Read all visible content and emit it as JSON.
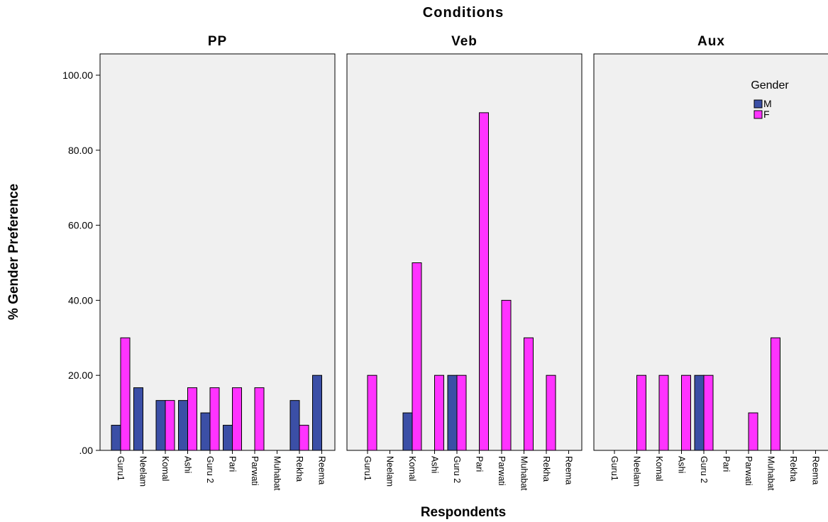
{
  "chart_data": {
    "type": "bar",
    "title": "Conditions",
    "xlabel": "Respondents",
    "ylabel": "% Gender Preference",
    "ylim": [
      0,
      100
    ],
    "yticks": [
      ".00",
      "20.00",
      "40.00",
      "60.00",
      "80.00",
      "100.00"
    ],
    "categories": [
      "Guru1",
      "Neelam",
      "Komal",
      "Ashi",
      "Guru 2",
      "Pari",
      "Parwati",
      "Muhabat",
      "Rekha",
      "Reema"
    ],
    "legend": {
      "title": "Gender",
      "position": "top-right",
      "entries": [
        "M",
        "F"
      ]
    },
    "colors": {
      "M": "#3b4fa6",
      "F": "#ff33ff",
      "panel": "#f0f0f0"
    },
    "grid": false,
    "panels": [
      {
        "name": "PP",
        "series": [
          {
            "name": "M",
            "values": [
              6.7,
              16.7,
              13.3,
              13.3,
              10,
              6.7,
              0,
              0,
              13.3,
              20
            ]
          },
          {
            "name": "F",
            "values": [
              30,
              0,
              13.3,
              16.7,
              16.7,
              16.7,
              16.7,
              0,
              6.7,
              0
            ]
          }
        ]
      },
      {
        "name": "Veb",
        "series": [
          {
            "name": "M",
            "values": [
              0,
              0,
              10,
              0,
              20,
              0,
              0,
              0,
              0,
              0
            ]
          },
          {
            "name": "F",
            "values": [
              20,
              0,
              50,
              20,
              20,
              90,
              40,
              30,
              20,
              0
            ]
          }
        ]
      },
      {
        "name": "Aux",
        "series": [
          {
            "name": "M",
            "values": [
              0,
              0,
              0,
              0,
              20,
              0,
              0,
              0,
              0,
              0
            ]
          },
          {
            "name": "F",
            "values": [
              0,
              20,
              20,
              20,
              20,
              0,
              10,
              30,
              0,
              0
            ]
          }
        ]
      }
    ]
  }
}
